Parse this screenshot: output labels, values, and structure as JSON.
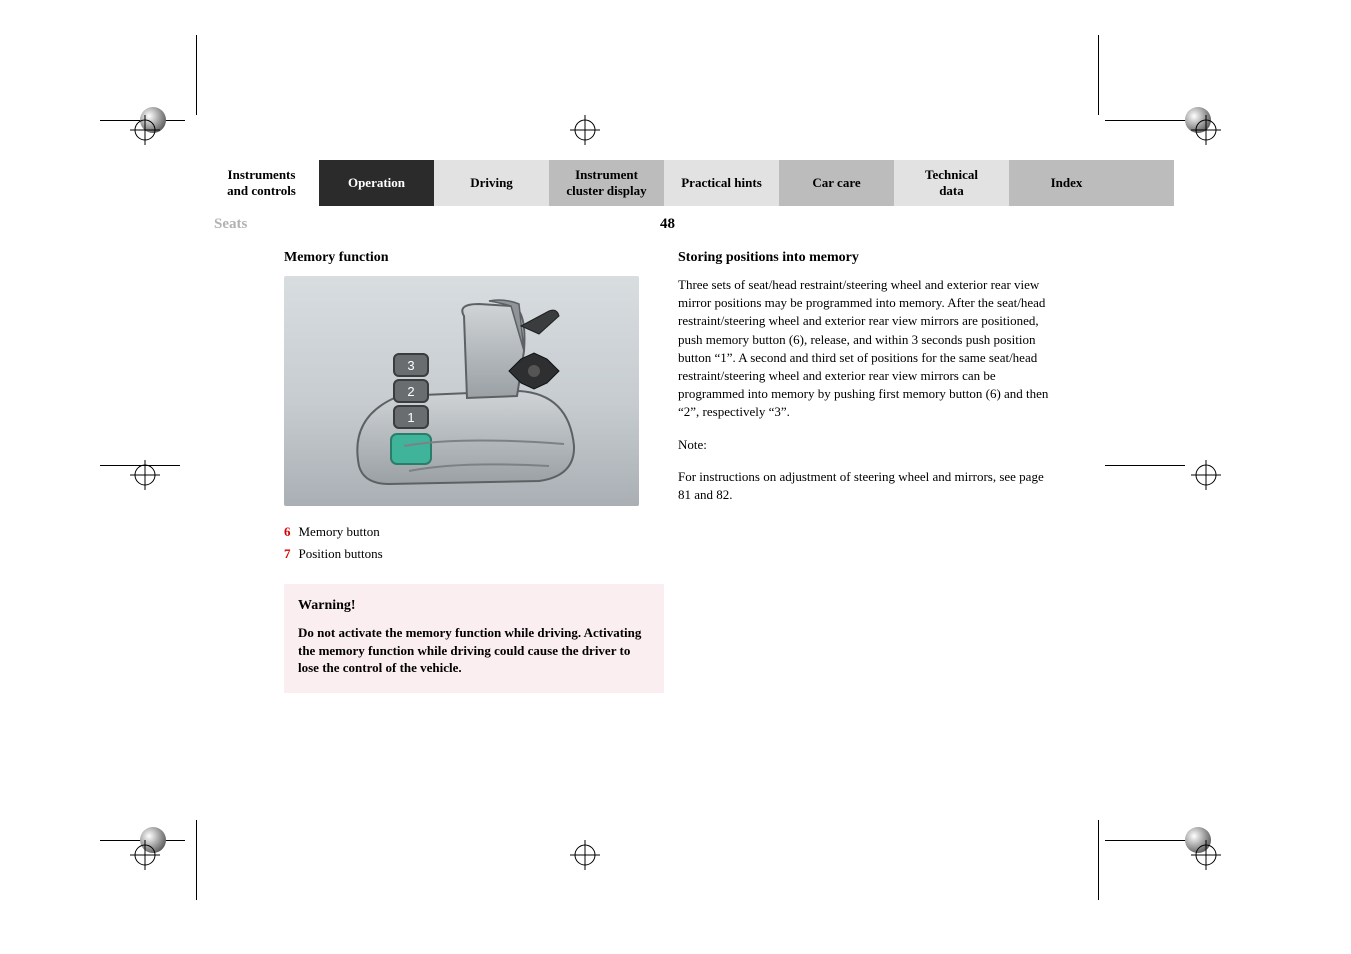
{
  "tabs": [
    {
      "label": "Instruments\nand controls",
      "cls": "white"
    },
    {
      "label": "Operation",
      "cls": "dark"
    },
    {
      "label": "Driving",
      "cls": "lgrey"
    },
    {
      "label": "Instrument\ncluster display",
      "cls": "mgrey"
    },
    {
      "label": "Practical hints",
      "cls": "lgrey"
    },
    {
      "label": "Car care",
      "cls": "mgrey"
    },
    {
      "label": "Technical\ndata",
      "cls": "lgrey"
    },
    {
      "label": "Index",
      "cls": "mgrey"
    }
  ],
  "section_label": "Seats",
  "page_number": "48",
  "left": {
    "heading": "Memory function",
    "legend": [
      {
        "n": "6",
        "text": "Memory button"
      },
      {
        "n": "7",
        "text": "Position buttons"
      }
    ],
    "warning_title": "Warning!",
    "warning_body": "Do not activate the memory function while driving. Activating the memory function while driving could cause the driver to lose the control of the vehicle."
  },
  "right": {
    "heading": "Storing positions into memory",
    "para1": "Three sets of seat/head restraint/steering wheel and exterior rear view mirror positions may be programmed into memory. After the seat/head restraint/steering wheel and exterior rear view mirrors are positioned, push memory button (6), release, and within 3 seconds push position button “1”. A second and third set of positions for the same seat/head restraint/steering wheel and exterior rear view mirrors can be programmed into memory by pushing first memory button (6) and then “2”, respectively “3”.",
    "note_label": "Note:",
    "note_body": "For instructions on adjustment of steering wheel and mirrors, see page 81 and 82."
  },
  "diagram": {
    "button_labels": [
      "3",
      "2",
      "1"
    ],
    "mem_button_color": "#3fb49a",
    "pos_button_color": "#6a6d70",
    "pos_button_text": "#ffffff",
    "seat_surface": "#a7adb1",
    "seat_surface_hi": "#d0d4d7",
    "seat_outline": "#5d6164",
    "bg_top": "#d8dde0",
    "bg_bot": "#a9afb4"
  },
  "colors": {
    "tab_dark_bg": "#2b2b2b",
    "tab_light_bg": "#e2e2e2",
    "tab_mid_bg": "#bcbcbc",
    "section_label_grey": "#b2b2b2",
    "legend_number_red": "#d80000",
    "warning_bg": "#fbeef0"
  },
  "typography": {
    "body_font": "Georgia serif",
    "tab_fontsize_pt": 10,
    "body_fontsize_pt": 10,
    "heading_fontsize_pt": 11
  }
}
